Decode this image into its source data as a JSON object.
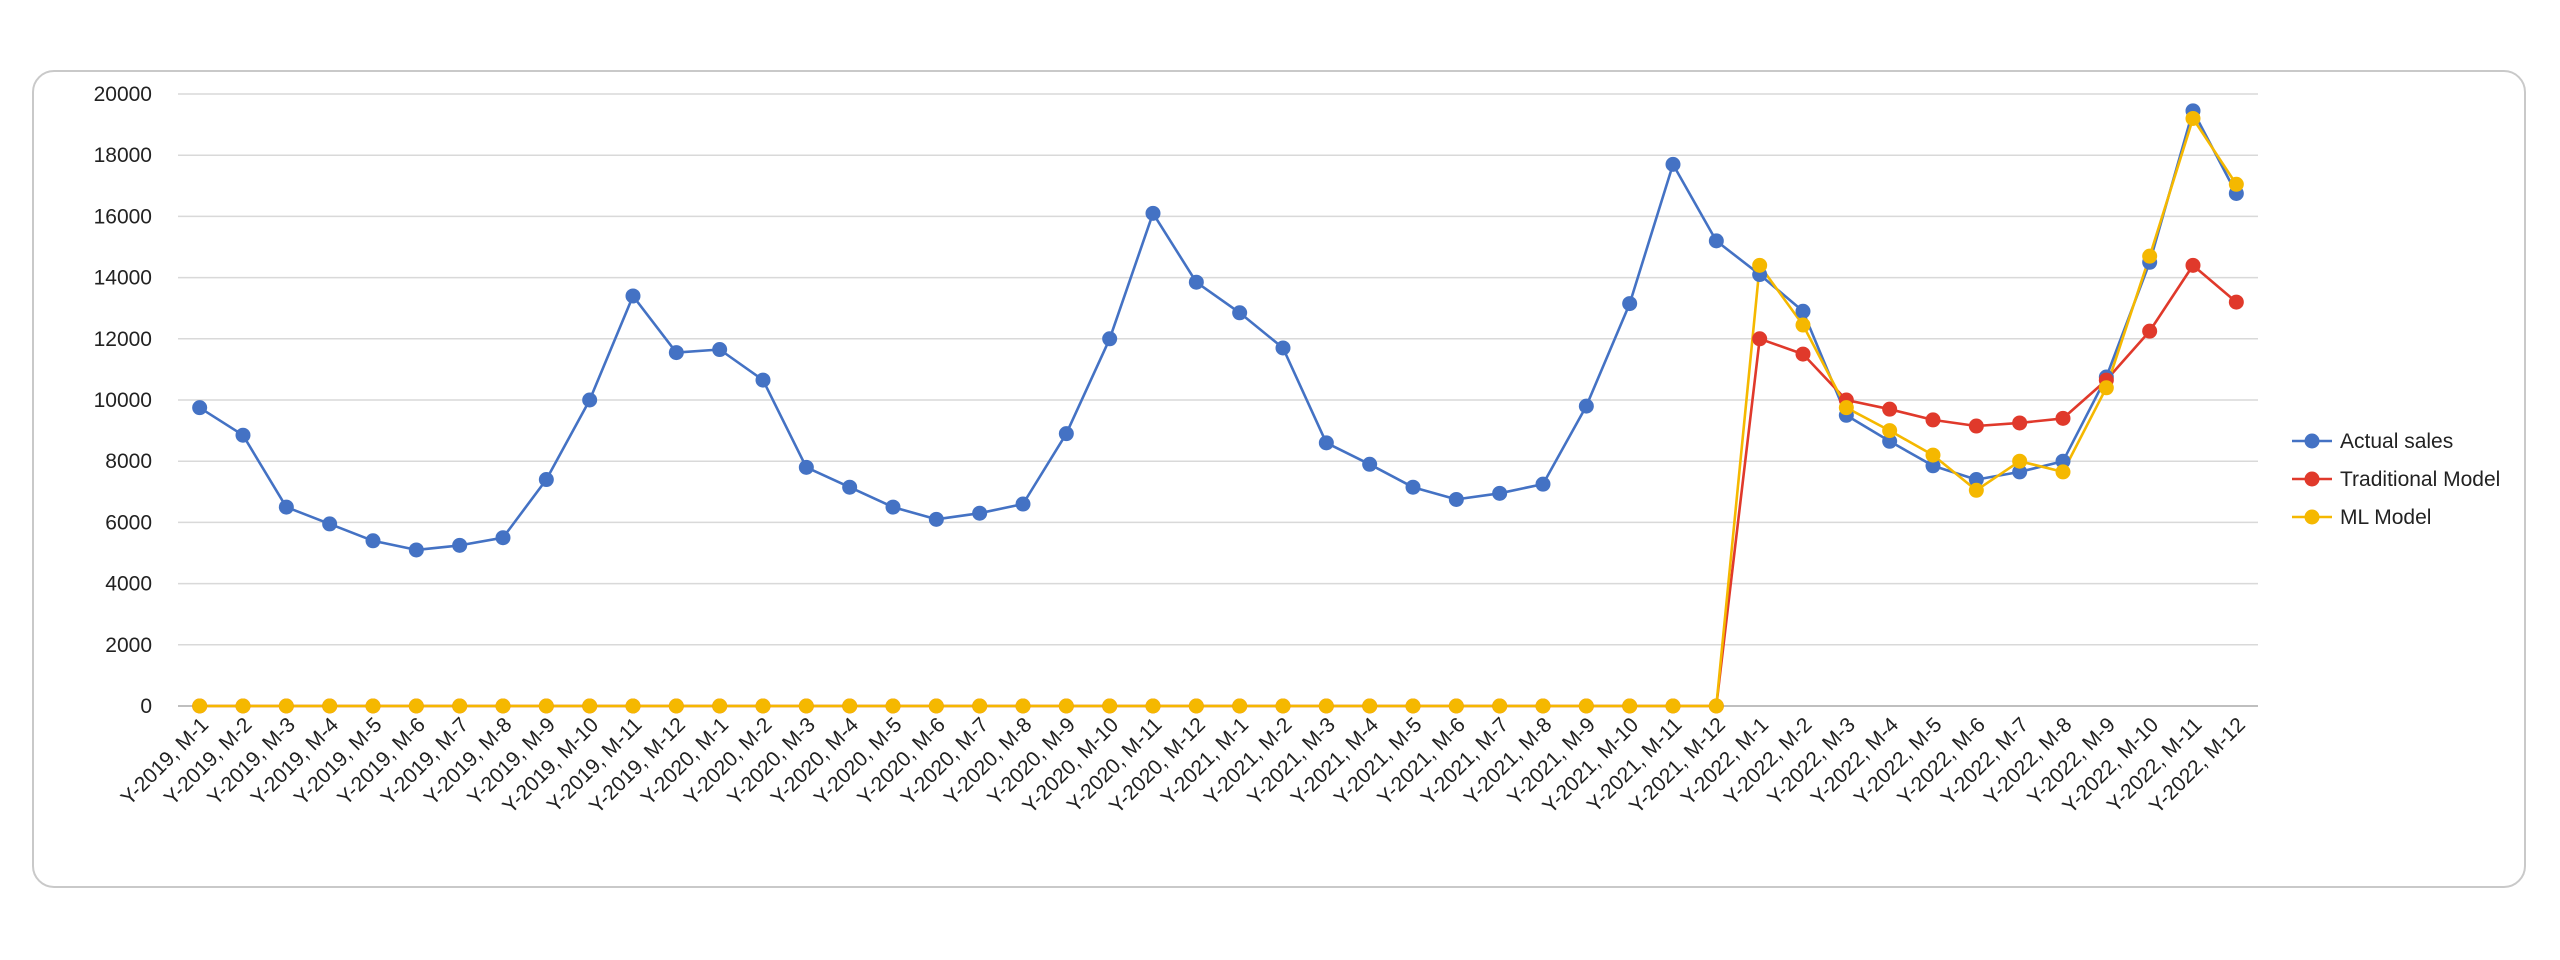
{
  "chart_data": {
    "type": "line",
    "categories": [
      "Y-2019, M-1",
      "Y-2019, M-2",
      "Y-2019, M-3",
      "Y-2019, M-4",
      "Y-2019, M-5",
      "Y-2019, M-6",
      "Y-2019, M-7",
      "Y-2019, M-8",
      "Y-2019, M-9",
      "Y-2019, M-10",
      "Y-2019, M-11",
      "Y-2019, M-12",
      "Y-2020, M-1",
      "Y-2020, M-2",
      "Y-2020, M-3",
      "Y-2020, M-4",
      "Y-2020, M-5",
      "Y-2020, M-6",
      "Y-2020, M-7",
      "Y-2020, M-8",
      "Y-2020, M-9",
      "Y-2020, M-10",
      "Y-2020, M-11",
      "Y-2020, M-12",
      "Y-2021, M-1",
      "Y-2021, M-2",
      "Y-2021, M-3",
      "Y-2021, M-4",
      "Y-2021, M-5",
      "Y-2021, M-6",
      "Y-2021, M-7",
      "Y-2021, M-8",
      "Y-2021, M-9",
      "Y-2021, M-10",
      "Y-2021, M-11",
      "Y-2021, M-12",
      "Y-2022, M-1",
      "Y-2022, M-2",
      "Y-2022, M-3",
      "Y-2022, M-4",
      "Y-2022, M-5",
      "Y-2022, M-6",
      "Y-2022, M-7",
      "Y-2022, M-8",
      "Y-2022, M-9",
      "Y-2022, M-10",
      "Y-2022, M-11",
      "Y-2022, M-12"
    ],
    "series": [
      {
        "name": "Actual sales",
        "color": "#4472c4",
        "values": [
          9750,
          8850,
          6500,
          5950,
          5400,
          5100,
          5250,
          5500,
          7400,
          10000,
          13400,
          11550,
          11650,
          10650,
          7800,
          7150,
          6500,
          6100,
          6300,
          6600,
          8900,
          12000,
          16100,
          13850,
          12850,
          11700,
          8600,
          7900,
          7150,
          6750,
          6950,
          7250,
          9800,
          13150,
          17700,
          15200,
          14100,
          12900,
          9500,
          8650,
          7850,
          7400,
          7650,
          8000,
          10750,
          14500,
          19450,
          16750
        ]
      },
      {
        "name": "Traditional Model",
        "color": "#e0392b",
        "values": [
          0,
          0,
          0,
          0,
          0,
          0,
          0,
          0,
          0,
          0,
          0,
          0,
          0,
          0,
          0,
          0,
          0,
          0,
          0,
          0,
          0,
          0,
          0,
          0,
          0,
          0,
          0,
          0,
          0,
          0,
          0,
          0,
          0,
          0,
          0,
          0,
          12000,
          11500,
          10000,
          9700,
          9350,
          9150,
          9250,
          9400,
          10650,
          12250,
          14400,
          13200
        ]
      },
      {
        "name": "ML Model",
        "color": "#f5b800",
        "values": [
          0,
          0,
          0,
          0,
          0,
          0,
          0,
          0,
          0,
          0,
          0,
          0,
          0,
          0,
          0,
          0,
          0,
          0,
          0,
          0,
          0,
          0,
          0,
          0,
          0,
          0,
          0,
          0,
          0,
          0,
          0,
          0,
          0,
          0,
          0,
          0,
          14400,
          12450,
          9750,
          9000,
          8200,
          7050,
          8000,
          7650,
          10400,
          14700,
          19200,
          17050
        ]
      }
    ],
    "title": "",
    "xlabel": "",
    "ylabel": "",
    "ylim": [
      0,
      20000
    ],
    "yticks": [
      0,
      2000,
      4000,
      6000,
      8000,
      10000,
      12000,
      14000,
      16000,
      18000,
      20000
    ],
    "grid": true,
    "legend_position": "right"
  }
}
